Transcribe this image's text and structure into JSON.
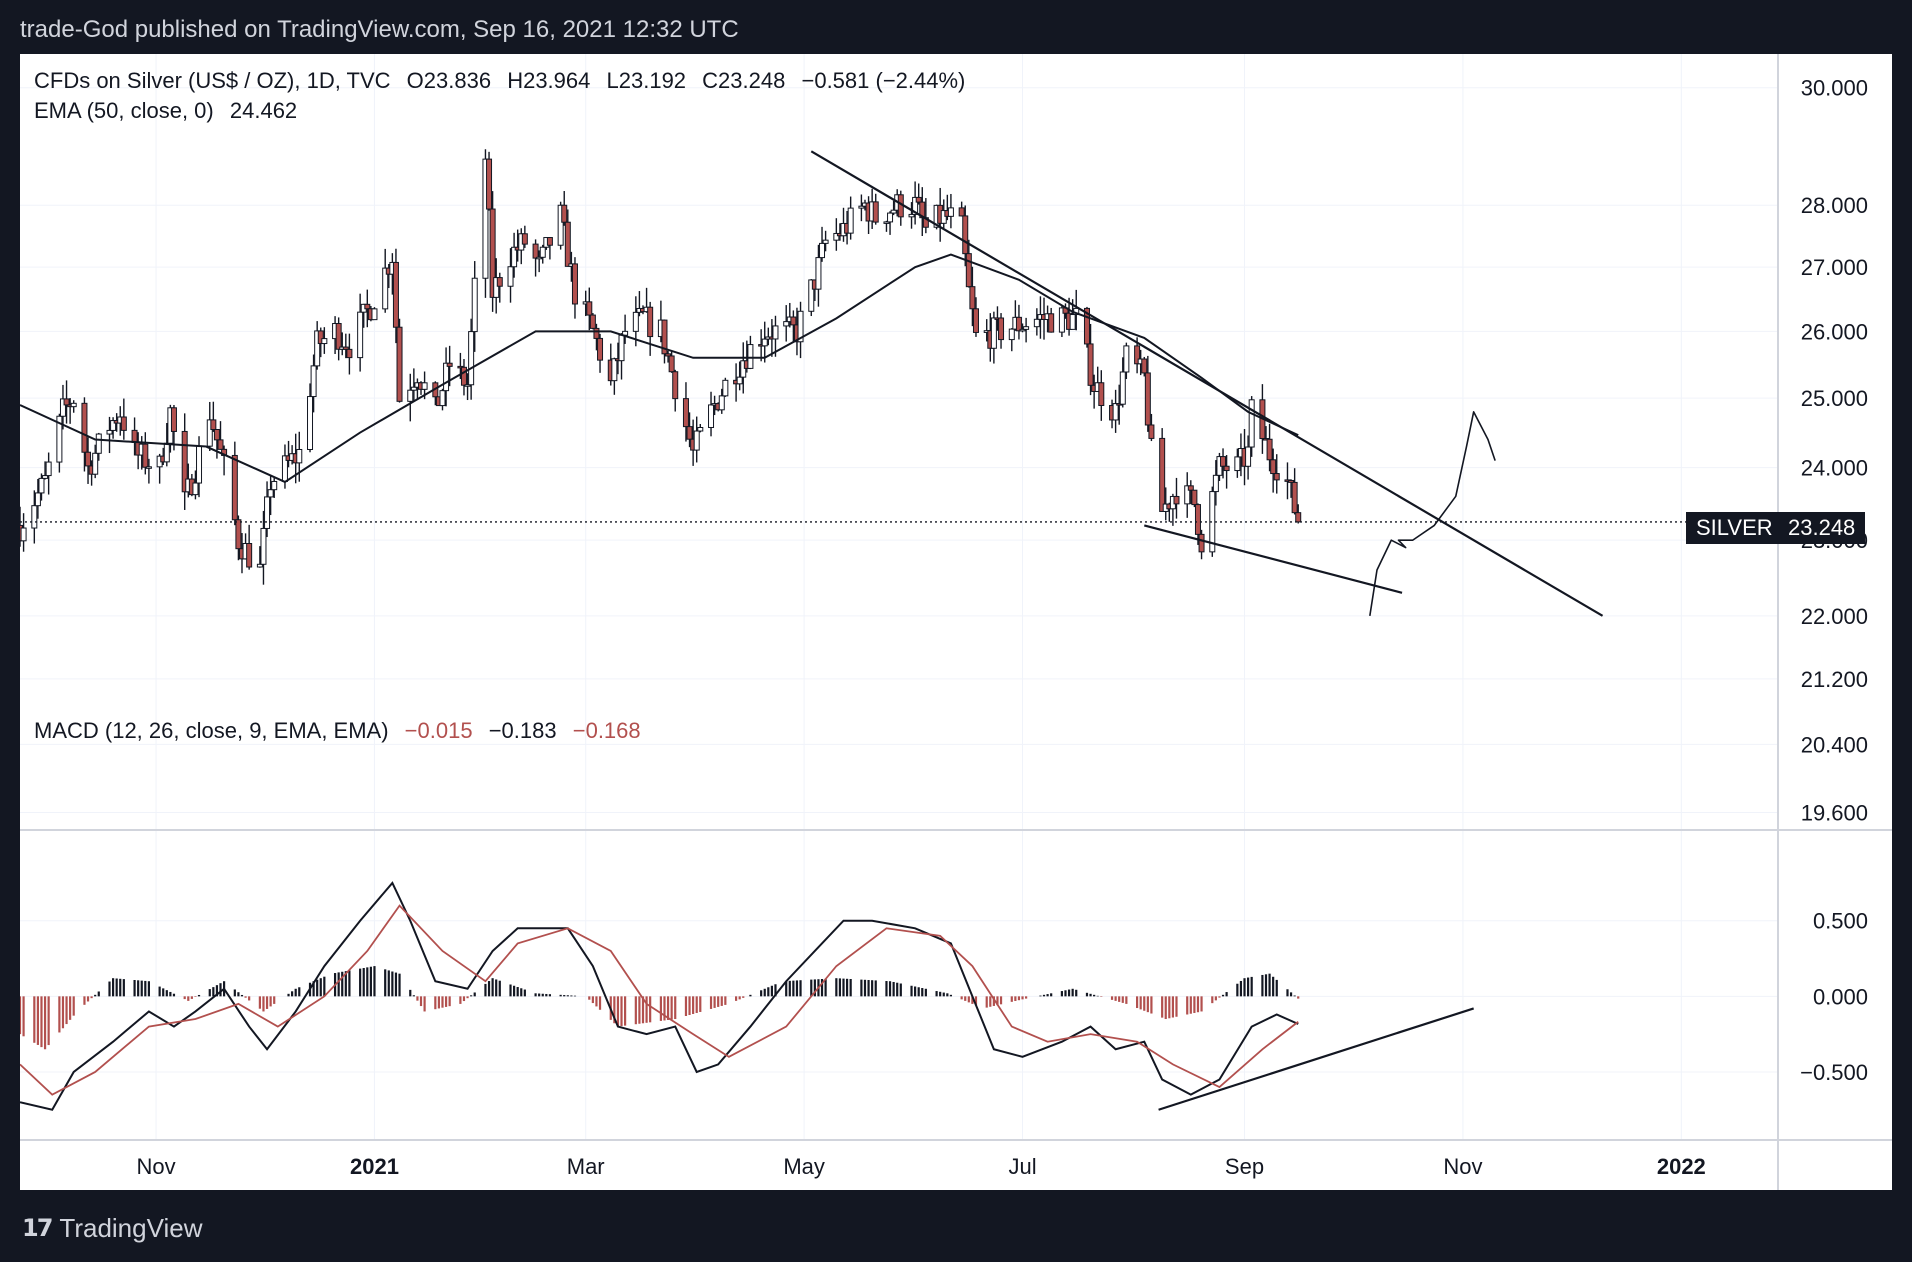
{
  "header": {
    "caption": "trade-God published on TradingView.com, Sep 16, 2021 12:32 UTC"
  },
  "legend": {
    "symbol": "CFDs on Silver (US$ / OZ), 1D, TVC",
    "open": "O23.836",
    "high": "H23.964",
    "low": "L23.192",
    "close": "C23.248",
    "change": "−0.581 (−2.44%)",
    "ema": "EMA (50, close, 0)",
    "ema_value": "24.462",
    "macd": "MACD (12, 26, close, 9, EMA, EMA)",
    "macd_hist": "−0.015",
    "macd_line": "−0.183",
    "macd_signal": "−0.168"
  },
  "price_badge": {
    "label": "SILVER",
    "value": "23.248"
  },
  "footer": {
    "logo_text": "TradingView"
  },
  "colors": {
    "background": "#131722",
    "panel": "#ffffff",
    "grid": "#f0f3fa",
    "candle": "#131722",
    "down_body": "#b2504e",
    "up_body": "#ffffff",
    "signal": "#b2504e"
  },
  "chart_data": [
    {
      "type": "candlestick",
      "title": "CFDs on Silver (US$ / OZ), 1D, TVC",
      "y_scale": "log",
      "y_ticks": [
        30.0,
        28.0,
        27.0,
        26.0,
        25.0,
        24.0,
        23.0,
        22.0,
        21.2,
        20.4,
        19.6
      ],
      "y_tick_labels": [
        "30.000",
        "28.000",
        "27.000",
        "26.000",
        "25.000",
        "24.000",
        "23.000",
        "22.000",
        "21.200",
        "20.400",
        "19.600"
      ],
      "x_ticks": [
        "2020-11-01",
        "2021-01-01",
        "2021-03-01",
        "2021-05-01",
        "2021-07-01",
        "2021-09-01",
        "2021-11-01",
        "2022-01-01"
      ],
      "x_tick_labels": [
        "Nov",
        "2021",
        "Mar",
        "May",
        "Jul",
        "Sep",
        "Nov",
        "2022"
      ],
      "x_range": [
        "2020-09-24",
        "2022-01-28"
      ],
      "y_range": [
        19.4,
        30.6
      ],
      "last_close": 23.248,
      "price_path": [
        [
          "2020-09-24",
          23.2
        ],
        [
          "2020-10-01",
          23.8
        ],
        [
          "2020-10-06",
          24.8
        ],
        [
          "2020-10-09",
          25.0
        ],
        [
          "2020-10-13",
          24.0
        ],
        [
          "2020-10-19",
          24.6
        ],
        [
          "2020-10-22",
          24.8
        ],
        [
          "2020-10-26",
          24.2
        ],
        [
          "2020-11-02",
          24.0
        ],
        [
          "2020-11-05",
          24.8
        ],
        [
          "2020-11-09",
          23.5
        ],
        [
          "2020-11-12",
          24.0
        ],
        [
          "2020-11-16",
          24.8
        ],
        [
          "2020-11-20",
          24.0
        ],
        [
          "2020-11-24",
          23.0
        ],
        [
          "2020-11-30",
          22.6
        ],
        [
          "2020-12-03",
          23.8
        ],
        [
          "2020-12-07",
          24.0
        ],
        [
          "2020-12-11",
          24.2
        ],
        [
          "2020-12-16",
          25.8
        ],
        [
          "2020-12-21",
          26.0
        ],
        [
          "2020-12-25",
          25.8
        ],
        [
          "2020-12-31",
          26.4
        ],
        [
          "2021-01-06",
          27.2
        ],
        [
          "2021-01-08",
          25.0
        ],
        [
          "2021-01-13",
          25.4
        ],
        [
          "2021-01-18",
          24.8
        ],
        [
          "2021-01-22",
          25.5
        ],
        [
          "2021-01-27",
          25.2
        ],
        [
          "2021-02-01",
          28.8
        ],
        [
          "2021-02-03",
          26.6
        ],
        [
          "2021-02-08",
          27.2
        ],
        [
          "2021-02-12",
          27.4
        ],
        [
          "2021-02-16",
          27.0
        ],
        [
          "2021-02-22",
          27.8
        ],
        [
          "2021-02-26",
          26.6
        ],
        [
          "2021-03-03",
          26.0
        ],
        [
          "2021-03-08",
          25.2
        ],
        [
          "2021-03-12",
          26.0
        ],
        [
          "2021-03-17",
          26.2
        ],
        [
          "2021-03-22",
          26.0
        ],
        [
          "2021-03-26",
          25.2
        ],
        [
          "2021-03-31",
          24.2
        ],
        [
          "2021-04-05",
          24.8
        ],
        [
          "2021-04-09",
          25.2
        ],
        [
          "2021-04-14",
          25.6
        ],
        [
          "2021-04-20",
          26.0
        ],
        [
          "2021-04-23",
          26.0
        ],
        [
          "2021-04-29",
          26.0
        ],
        [
          "2021-05-04",
          26.8
        ],
        [
          "2021-05-07",
          27.4
        ],
        [
          "2021-05-12",
          27.6
        ],
        [
          "2021-05-18",
          28.0
        ],
        [
          "2021-05-21",
          27.8
        ],
        [
          "2021-05-27",
          28.0
        ],
        [
          "2021-06-01",
          28.0
        ],
        [
          "2021-06-04",
          27.6
        ],
        [
          "2021-06-08",
          27.8
        ],
        [
          "2021-06-11",
          27.8
        ],
        [
          "2021-06-14",
          27.6
        ],
        [
          "2021-06-16",
          26.6
        ],
        [
          "2021-06-18",
          25.9
        ],
        [
          "2021-06-24",
          26.0
        ],
        [
          "2021-06-30",
          26.1
        ],
        [
          "2021-07-06",
          26.2
        ],
        [
          "2021-07-12",
          26.2
        ],
        [
          "2021-07-16",
          26.2
        ],
        [
          "2021-07-21",
          25.2
        ],
        [
          "2021-07-27",
          24.8
        ],
        [
          "2021-07-30",
          25.6
        ],
        [
          "2021-08-04",
          25.3
        ],
        [
          "2021-08-06",
          24.2
        ],
        [
          "2021-08-09",
          23.4
        ],
        [
          "2021-08-13",
          23.7
        ],
        [
          "2021-08-18",
          23.5
        ],
        [
          "2021-08-20",
          23.0
        ],
        [
          "2021-08-25",
          24.0
        ],
        [
          "2021-08-30",
          24.0
        ],
        [
          "2021-09-02",
          24.2
        ],
        [
          "2021-09-03",
          24.8
        ],
        [
          "2021-09-08",
          24.2
        ],
        [
          "2021-09-13",
          23.8
        ],
        [
          "2021-09-16",
          23.248
        ]
      ],
      "ema_path": [
        [
          "2020-09-24",
          24.9
        ],
        [
          "2020-10-15",
          24.4
        ],
        [
          "2020-11-15",
          24.3
        ],
        [
          "2020-12-07",
          23.8
        ],
        [
          "2020-12-28",
          24.5
        ],
        [
          "2021-01-20",
          25.2
        ],
        [
          "2021-02-15",
          26.0
        ],
        [
          "2021-03-08",
          26.0
        ],
        [
          "2021-03-31",
          25.6
        ],
        [
          "2021-04-20",
          25.6
        ],
        [
          "2021-05-10",
          26.2
        ],
        [
          "2021-06-01",
          27.0
        ],
        [
          "2021-06-11",
          27.2
        ],
        [
          "2021-06-30",
          26.8
        ],
        [
          "2021-07-15",
          26.3
        ],
        [
          "2021-08-04",
          25.9
        ],
        [
          "2021-08-20",
          25.3
        ],
        [
          "2021-09-02",
          24.8
        ],
        [
          "2021-09-16",
          24.462
        ]
      ],
      "drawings": {
        "upper_trendline": [
          [
            "2021-05-03",
            28.9
          ],
          [
            "2021-12-10",
            22.0
          ]
        ],
        "lower_trendline": [
          [
            "2021-08-04",
            23.2
          ],
          [
            "2021-10-15",
            22.3
          ]
        ],
        "forecast_path": [
          [
            "2021-10-06",
            22.0
          ],
          [
            "2021-10-08",
            22.6
          ],
          [
            "2021-10-12",
            23.0
          ],
          [
            "2021-10-16",
            22.9
          ],
          [
            "2021-10-14",
            23.0
          ],
          [
            "2021-10-18",
            23.0
          ],
          [
            "2021-10-24",
            23.2
          ],
          [
            "2021-10-30",
            23.6
          ],
          [
            "2021-11-02",
            24.3
          ],
          [
            "2021-11-04",
            24.8
          ],
          [
            "2021-11-08",
            24.4
          ],
          [
            "2021-11-10",
            24.1
          ]
        ]
      }
    },
    {
      "type": "line",
      "title": "MACD (12, 26, close, 9, EMA, EMA)",
      "y_ticks": [
        0.5,
        0.0,
        -0.5
      ],
      "y_tick_labels": [
        "0.500",
        "0.000",
        "−0.500"
      ],
      "y_range": [
        -0.95,
        1.1
      ],
      "series": [
        {
          "name": "MACD",
          "points": [
            [
              "2020-09-24",
              -0.7
            ],
            [
              "2020-10-03",
              -0.75
            ],
            [
              "2020-10-09",
              -0.5
            ],
            [
              "2020-10-20",
              -0.3
            ],
            [
              "2020-10-30",
              -0.1
            ],
            [
              "2020-11-06",
              -0.2
            ],
            [
              "2020-11-12",
              -0.1
            ],
            [
              "2020-11-20",
              0.05
            ],
            [
              "2020-11-27",
              -0.2
            ],
            [
              "2020-12-02",
              -0.35
            ],
            [
              "2020-12-10",
              -0.1
            ],
            [
              "2020-12-18",
              0.2
            ],
            [
              "2020-12-28",
              0.5
            ],
            [
              "2021-01-06",
              0.75
            ],
            [
              "2021-01-11",
              0.5
            ],
            [
              "2021-01-18",
              0.1
            ],
            [
              "2021-01-27",
              0.05
            ],
            [
              "2021-02-03",
              0.3
            ],
            [
              "2021-02-10",
              0.45
            ],
            [
              "2021-02-18",
              0.45
            ],
            [
              "2021-02-24",
              0.45
            ],
            [
              "2021-03-03",
              0.2
            ],
            [
              "2021-03-10",
              -0.2
            ],
            [
              "2021-03-18",
              -0.25
            ],
            [
              "2021-03-26",
              -0.2
            ],
            [
              "2021-04-01",
              -0.5
            ],
            [
              "2021-04-07",
              -0.45
            ],
            [
              "2021-04-16",
              -0.2
            ],
            [
              "2021-04-26",
              0.1
            ],
            [
              "2021-05-04",
              0.3
            ],
            [
              "2021-05-12",
              0.5
            ],
            [
              "2021-05-20",
              0.5
            ],
            [
              "2021-06-01",
              0.45
            ],
            [
              "2021-06-11",
              0.35
            ],
            [
              "2021-06-17",
              0.0
            ],
            [
              "2021-06-23",
              -0.35
            ],
            [
              "2021-07-01",
              -0.4
            ],
            [
              "2021-07-12",
              -0.3
            ],
            [
              "2021-07-20",
              -0.2
            ],
            [
              "2021-07-27",
              -0.35
            ],
            [
              "2021-08-04",
              -0.3
            ],
            [
              "2021-08-09",
              -0.55
            ],
            [
              "2021-08-17",
              -0.65
            ],
            [
              "2021-08-25",
              -0.55
            ],
            [
              "2021-09-03",
              -0.2
            ],
            [
              "2021-09-10",
              -0.12
            ],
            [
              "2021-09-16",
              -0.183
            ]
          ]
        },
        {
          "name": "Signal",
          "points": [
            [
              "2020-09-24",
              -0.45
            ],
            [
              "2020-10-03",
              -0.65
            ],
            [
              "2020-10-15",
              -0.5
            ],
            [
              "2020-10-30",
              -0.2
            ],
            [
              "2020-11-12",
              -0.15
            ],
            [
              "2020-11-24",
              -0.05
            ],
            [
              "2020-12-05",
              -0.2
            ],
            [
              "2020-12-18",
              0.0
            ],
            [
              "2020-12-30",
              0.3
            ],
            [
              "2021-01-08",
              0.6
            ],
            [
              "2021-01-20",
              0.3
            ],
            [
              "2021-02-01",
              0.1
            ],
            [
              "2021-02-10",
              0.35
            ],
            [
              "2021-02-24",
              0.45
            ],
            [
              "2021-03-08",
              0.3
            ],
            [
              "2021-03-18",
              -0.05
            ],
            [
              "2021-03-31",
              -0.25
            ],
            [
              "2021-04-10",
              -0.4
            ],
            [
              "2021-04-26",
              -0.2
            ],
            [
              "2021-05-10",
              0.2
            ],
            [
              "2021-05-24",
              0.45
            ],
            [
              "2021-06-08",
              0.4
            ],
            [
              "2021-06-17",
              0.2
            ],
            [
              "2021-06-28",
              -0.2
            ],
            [
              "2021-07-08",
              -0.3
            ],
            [
              "2021-07-20",
              -0.25
            ],
            [
              "2021-08-02",
              -0.3
            ],
            [
              "2021-08-12",
              -0.45
            ],
            [
              "2021-08-25",
              -0.6
            ],
            [
              "2021-09-06",
              -0.35
            ],
            [
              "2021-09-16",
              -0.168
            ]
          ]
        },
        {
          "name": "Histogram",
          "points": [
            [
              "2020-09-24",
              -0.25
            ],
            [
              "2020-10-01",
              -0.35
            ],
            [
              "2020-10-10",
              -0.1
            ],
            [
              "2020-10-20",
              0.12
            ],
            [
              "2020-10-30",
              0.1
            ],
            [
              "2020-11-10",
              -0.03
            ],
            [
              "2020-11-20",
              0.1
            ],
            [
              "2020-12-01",
              -0.1
            ],
            [
              "2020-12-10",
              0.05
            ],
            [
              "2020-12-20",
              0.15
            ],
            [
              "2021-01-01",
              0.2
            ],
            [
              "2021-01-08",
              0.15
            ],
            [
              "2021-01-15",
              -0.1
            ],
            [
              "2021-01-25",
              -0.05
            ],
            [
              "2021-02-03",
              0.12
            ],
            [
              "2021-02-15",
              0.02
            ],
            [
              "2021-03-01",
              0.0
            ],
            [
              "2021-03-10",
              -0.2
            ],
            [
              "2021-03-26",
              -0.15
            ],
            [
              "2021-04-10",
              -0.05
            ],
            [
              "2021-04-25",
              0.1
            ],
            [
              "2021-05-10",
              0.12
            ],
            [
              "2021-05-25",
              0.1
            ],
            [
              "2021-06-10",
              0.02
            ],
            [
              "2021-06-20",
              -0.08
            ],
            [
              "2021-07-01",
              -0.02
            ],
            [
              "2021-07-15",
              0.05
            ],
            [
              "2021-07-30",
              -0.05
            ],
            [
              "2021-08-10",
              -0.15
            ],
            [
              "2021-08-20",
              -0.1
            ],
            [
              "2021-09-01",
              0.12
            ],
            [
              "2021-09-08",
              0.15
            ],
            [
              "2021-09-16",
              -0.015
            ]
          ]
        }
      ],
      "drawings": {
        "support_trendline": [
          [
            "2021-08-08",
            -0.75
          ],
          [
            "2021-11-04",
            -0.08
          ]
        ]
      }
    }
  ]
}
